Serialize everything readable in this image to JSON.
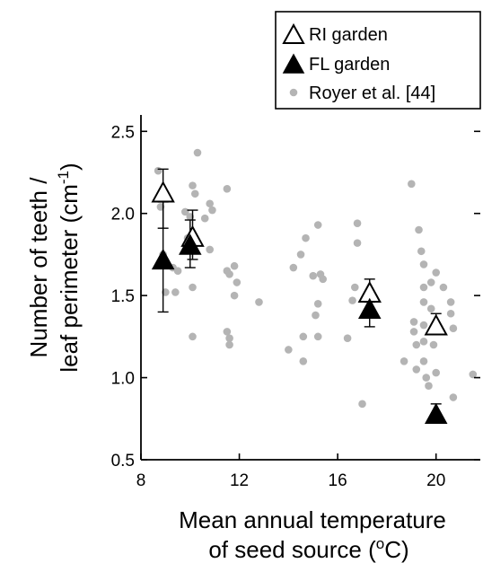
{
  "chart_data": {
    "type": "scatter",
    "xlabel_line1": "Mean annual temperature",
    "xlabel_line2_prefix": "of seed source (",
    "xlabel_line2_sup": "o",
    "xlabel_line2_suffix": "C)",
    "ylabel_line1": "Number of teeth /",
    "ylabel_line2_prefix": "leaf perimeter (cm",
    "ylabel_line2_sup": "-1",
    "ylabel_line2_suffix": ")",
    "xlim": [
      8,
      21.8
    ],
    "ylim": [
      0.5,
      2.6
    ],
    "xticks": [
      {
        "value": 8,
        "label": "8"
      },
      {
        "value": 12,
        "label": "12"
      },
      {
        "value": 16,
        "label": "16"
      },
      {
        "value": 20,
        "label": "20"
      }
    ],
    "yticks": [
      {
        "value": 0.5,
        "label": "0.5"
      },
      {
        "value": 1.0,
        "label": "1.0"
      },
      {
        "value": 1.5,
        "label": "1.5"
      },
      {
        "value": 2.0,
        "label": "2.0"
      },
      {
        "value": 2.5,
        "label": "2.5"
      }
    ],
    "legend_position": "top-right",
    "legend": [
      {
        "label": "RI garden",
        "marker": "open-triangle"
      },
      {
        "label": "FL garden",
        "marker": "filled-triangle"
      },
      {
        "label": "Royer et al. [44]",
        "marker": "gray-dot"
      }
    ],
    "colors": {
      "royer": "#b4b4b4",
      "marker": "#000000"
    },
    "series": [
      {
        "name": "RI garden",
        "marker": "open-triangle",
        "points": [
          {
            "x": 8.9,
            "y": 2.13,
            "yerr_low": 1.91,
            "yerr_high": 2.27
          },
          {
            "x": 10.1,
            "y": 1.86,
            "yerr_low": 1.72,
            "yerr_high": 2.02
          },
          {
            "x": 17.3,
            "y": 1.52,
            "yerr_low": 1.46,
            "yerr_high": 1.6
          },
          {
            "x": 20.0,
            "y": 1.32,
            "yerr_low": 1.27,
            "yerr_high": 1.39
          }
        ]
      },
      {
        "name": "FL garden",
        "marker": "filled-triangle",
        "points": [
          {
            "x": 8.9,
            "y": 1.72,
            "yerr_low": 1.4,
            "yerr_high": 2.07
          },
          {
            "x": 10.0,
            "y": 1.81,
            "yerr_low": 1.67,
            "yerr_high": 1.96
          },
          {
            "x": 17.3,
            "y": 1.42,
            "yerr_low": 1.31,
            "yerr_high": 1.52
          },
          {
            "x": 20.0,
            "y": 0.78,
            "yerr_low": 0.75,
            "yerr_high": 0.84
          }
        ]
      },
      {
        "name": "Royer et al. [44]",
        "marker": "gray-dot",
        "points": [
          {
            "x": 8.7,
            "y": 2.26
          },
          {
            "x": 8.8,
            "y": 2.04
          },
          {
            "x": 8.9,
            "y": 1.75
          },
          {
            "x": 9.0,
            "y": 1.52
          },
          {
            "x": 9.3,
            "y": 1.67
          },
          {
            "x": 9.4,
            "y": 1.52
          },
          {
            "x": 9.5,
            "y": 1.65
          },
          {
            "x": 9.8,
            "y": 2.01
          },
          {
            "x": 9.9,
            "y": 1.85
          },
          {
            "x": 10.0,
            "y": 1.98
          },
          {
            "x": 10.1,
            "y": 2.17
          },
          {
            "x": 10.2,
            "y": 2.12
          },
          {
            "x": 10.3,
            "y": 2.37
          },
          {
            "x": 10.1,
            "y": 1.55
          },
          {
            "x": 10.1,
            "y": 1.25
          },
          {
            "x": 10.6,
            "y": 1.97
          },
          {
            "x": 10.8,
            "y": 2.06
          },
          {
            "x": 10.9,
            "y": 2.02
          },
          {
            "x": 10.8,
            "y": 1.78
          },
          {
            "x": 11.5,
            "y": 2.15
          },
          {
            "x": 11.5,
            "y": 1.65
          },
          {
            "x": 11.6,
            "y": 1.63
          },
          {
            "x": 11.8,
            "y": 1.68
          },
          {
            "x": 11.9,
            "y": 1.58
          },
          {
            "x": 11.8,
            "y": 1.5
          },
          {
            "x": 11.5,
            "y": 1.28
          },
          {
            "x": 11.6,
            "y": 1.24
          },
          {
            "x": 11.6,
            "y": 1.2
          },
          {
            "x": 12.8,
            "y": 1.46
          },
          {
            "x": 14.0,
            "y": 1.17
          },
          {
            "x": 14.2,
            "y": 1.67
          },
          {
            "x": 14.5,
            "y": 1.75
          },
          {
            "x": 14.6,
            "y": 1.25
          },
          {
            "x": 14.6,
            "y": 1.1
          },
          {
            "x": 14.7,
            "y": 1.85
          },
          {
            "x": 15.0,
            "y": 1.62
          },
          {
            "x": 15.2,
            "y": 1.93
          },
          {
            "x": 15.3,
            "y": 1.63
          },
          {
            "x": 15.4,
            "y": 1.6
          },
          {
            "x": 15.2,
            "y": 1.45
          },
          {
            "x": 15.1,
            "y": 1.38
          },
          {
            "x": 15.2,
            "y": 1.25
          },
          {
            "x": 16.4,
            "y": 1.24
          },
          {
            "x": 16.6,
            "y": 1.47
          },
          {
            "x": 16.7,
            "y": 1.55
          },
          {
            "x": 16.8,
            "y": 1.94
          },
          {
            "x": 16.8,
            "y": 1.82
          },
          {
            "x": 17.0,
            "y": 0.84
          },
          {
            "x": 18.7,
            "y": 1.1
          },
          {
            "x": 19.0,
            "y": 2.18
          },
          {
            "x": 19.1,
            "y": 1.28
          },
          {
            "x": 19.1,
            "y": 1.34
          },
          {
            "x": 19.2,
            "y": 1.2
          },
          {
            "x": 19.2,
            "y": 1.05
          },
          {
            "x": 19.3,
            "y": 1.9
          },
          {
            "x": 19.4,
            "y": 1.77
          },
          {
            "x": 19.5,
            "y": 1.69
          },
          {
            "x": 19.5,
            "y": 1.55
          },
          {
            "x": 19.5,
            "y": 1.46
          },
          {
            "x": 19.5,
            "y": 1.32
          },
          {
            "x": 19.5,
            "y": 1.22
          },
          {
            "x": 19.5,
            "y": 1.1
          },
          {
            "x": 19.6,
            "y": 1.0
          },
          {
            "x": 19.7,
            "y": 0.95
          },
          {
            "x": 19.8,
            "y": 1.58
          },
          {
            "x": 19.8,
            "y": 1.42
          },
          {
            "x": 19.9,
            "y": 1.2
          },
          {
            "x": 20.0,
            "y": 1.64
          },
          {
            "x": 20.0,
            "y": 1.03
          },
          {
            "x": 20.3,
            "y": 1.55
          },
          {
            "x": 20.6,
            "y": 1.46
          },
          {
            "x": 20.6,
            "y": 1.39
          },
          {
            "x": 20.7,
            "y": 1.3
          },
          {
            "x": 20.7,
            "y": 0.88
          },
          {
            "x": 21.5,
            "y": 1.02
          }
        ]
      }
    ]
  }
}
